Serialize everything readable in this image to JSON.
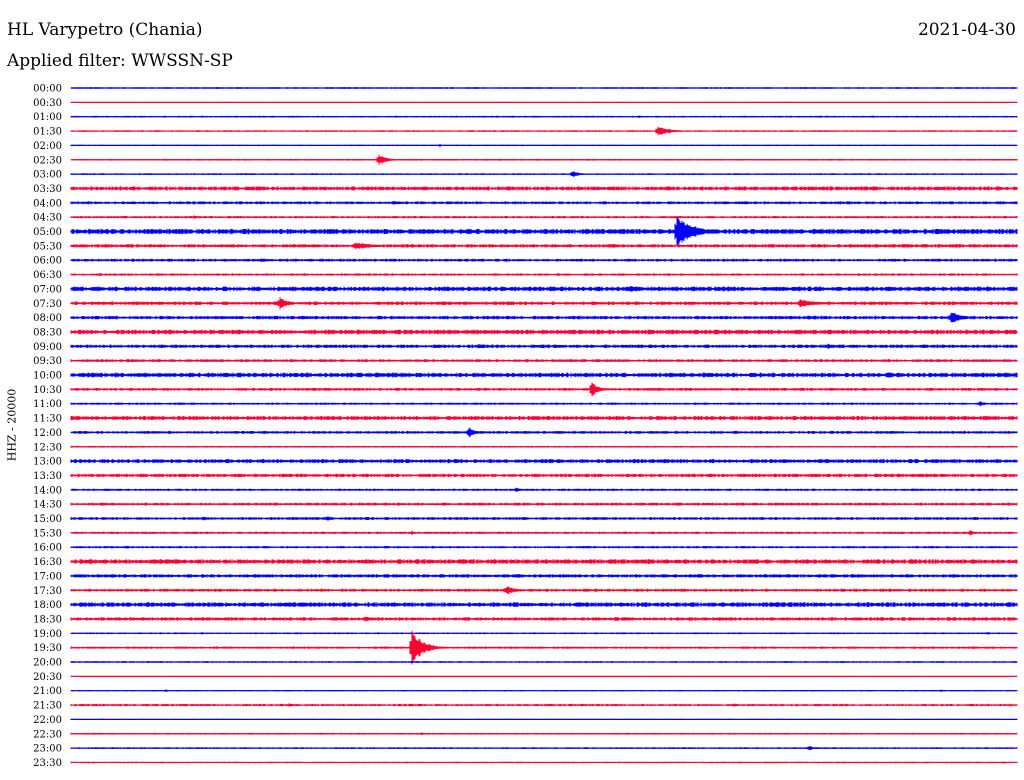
{
  "header": {
    "station": "HL Varypetro (Chania)",
    "date": "2021-04-30",
    "filter": "Applied filter: WWSSN-SP"
  },
  "colors": {
    "trace_even": "#0000ff",
    "trace_odd": "#ff0033",
    "background": "#ffffff",
    "text": "#000000"
  },
  "chart_data": {
    "type": "line",
    "title": "HL Varypetro (Chania)",
    "subtitle": "Applied filter: WWSSN-SP",
    "ylabel": "HHZ - 20000",
    "xlabel": "",
    "date": "2021-04-30",
    "grid": false,
    "rows": [
      {
        "label": "00:00",
        "noise": 0.6,
        "events": []
      },
      {
        "label": "00:30",
        "noise": 0.3,
        "events": []
      },
      {
        "label": "01:00",
        "noise": 0.6,
        "events": [
          {
            "at": 0.6,
            "amp": 2,
            "dur": 0.008
          }
        ]
      },
      {
        "label": "01:30",
        "noise": 0.6,
        "events": [
          {
            "at": 0.62,
            "amp": 5,
            "dur": 0.04
          }
        ]
      },
      {
        "label": "02:00",
        "noise": 0.5,
        "events": [
          {
            "at": 0.39,
            "amp": 2,
            "dur": 0.006
          }
        ]
      },
      {
        "label": "02:30",
        "noise": 0.6,
        "events": [
          {
            "at": 0.325,
            "amp": 6,
            "dur": 0.025
          }
        ]
      },
      {
        "label": "03:00",
        "noise": 0.6,
        "events": [
          {
            "at": 0.53,
            "amp": 4,
            "dur": 0.02
          }
        ]
      },
      {
        "label": "03:30",
        "noise": 1.4,
        "events": []
      },
      {
        "label": "04:00",
        "noise": 1.0,
        "events": [
          {
            "at": 0.2,
            "amp": 2,
            "dur": 0.02
          },
          {
            "at": 0.34,
            "amp": 2.5,
            "dur": 0.04
          }
        ]
      },
      {
        "label": "04:30",
        "noise": 0.8,
        "events": [
          {
            "at": 0.13,
            "amp": 2,
            "dur": 0.015
          },
          {
            "at": 0.54,
            "amp": 1.5,
            "dur": 0.01
          }
        ]
      },
      {
        "label": "05:00",
        "noise": 1.8,
        "events": [
          {
            "at": 0.08,
            "amp": 3,
            "dur": 0.01
          },
          {
            "at": 0.64,
            "amp": 17,
            "dur": 0.05
          }
        ]
      },
      {
        "label": "05:30",
        "noise": 1.2,
        "events": [
          {
            "at": 0.3,
            "amp": 4,
            "dur": 0.06
          }
        ]
      },
      {
        "label": "06:00",
        "noise": 1.0,
        "events": [
          {
            "at": 0.2,
            "amp": 3,
            "dur": 0.015
          }
        ]
      },
      {
        "label": "06:30",
        "noise": 0.8,
        "events": [
          {
            "at": 0.03,
            "amp": 2,
            "dur": 0.01
          }
        ]
      },
      {
        "label": "07:00",
        "noise": 1.6,
        "events": [
          {
            "at": 0.59,
            "amp": 4,
            "dur": 0.03
          }
        ]
      },
      {
        "label": "07:30",
        "noise": 1.2,
        "events": [
          {
            "at": 0.22,
            "amp": 7,
            "dur": 0.025
          },
          {
            "at": 0.77,
            "amp": 4,
            "dur": 0.06
          }
        ]
      },
      {
        "label": "08:00",
        "noise": 1.2,
        "events": [
          {
            "at": 0.93,
            "amp": 6,
            "dur": 0.04
          }
        ]
      },
      {
        "label": "08:30",
        "noise": 1.6,
        "events": []
      },
      {
        "label": "09:00",
        "noise": 1.2,
        "events": [
          {
            "at": 0.43,
            "amp": 3,
            "dur": 0.02
          },
          {
            "at": 0.8,
            "amp": 3,
            "dur": 0.025
          }
        ]
      },
      {
        "label": "09:30",
        "noise": 1.0,
        "events": [
          {
            "at": 0.06,
            "amp": 2,
            "dur": 0.01
          }
        ]
      },
      {
        "label": "10:00",
        "noise": 1.6,
        "events": [
          {
            "at": 0.34,
            "amp": 3,
            "dur": 0.015
          }
        ]
      },
      {
        "label": "10:30",
        "noise": 1.0,
        "events": [
          {
            "at": 0.55,
            "amp": 9,
            "dur": 0.02
          },
          {
            "at": 0.62,
            "amp": 2,
            "dur": 0.03
          }
        ]
      },
      {
        "label": "11:00",
        "noise": 0.8,
        "events": [
          {
            "at": 0.96,
            "amp": 3,
            "dur": 0.02
          }
        ]
      },
      {
        "label": "11:30",
        "noise": 1.4,
        "events": []
      },
      {
        "label": "12:00",
        "noise": 1.0,
        "events": [
          {
            "at": 0.42,
            "amp": 6,
            "dur": 0.025
          },
          {
            "at": 0.65,
            "amp": 2,
            "dur": 0.01
          }
        ]
      },
      {
        "label": "12:30",
        "noise": 0.6,
        "events": [
          {
            "at": 0.97,
            "amp": 2,
            "dur": 0.005
          }
        ]
      },
      {
        "label": "13:00",
        "noise": 1.4,
        "events": []
      },
      {
        "label": "13:30",
        "noise": 1.2,
        "events": []
      },
      {
        "label": "14:00",
        "noise": 0.8,
        "events": [
          {
            "at": 0.47,
            "amp": 3,
            "dur": 0.015
          }
        ]
      },
      {
        "label": "14:30",
        "noise": 1.0,
        "events": []
      },
      {
        "label": "15:00",
        "noise": 1.0,
        "events": [
          {
            "at": 0.14,
            "amp": 3,
            "dur": 0.008
          },
          {
            "at": 0.27,
            "amp": 3,
            "dur": 0.02
          }
        ]
      },
      {
        "label": "15:30",
        "noise": 0.8,
        "events": [
          {
            "at": 0.36,
            "amp": 3,
            "dur": 0.01
          },
          {
            "at": 0.95,
            "amp": 3,
            "dur": 0.02
          }
        ]
      },
      {
        "label": "16:00",
        "noise": 0.8,
        "events": []
      },
      {
        "label": "16:30",
        "noise": 1.6,
        "events": [
          {
            "at": 0.02,
            "amp": 3,
            "dur": 0.03
          },
          {
            "at": 0.11,
            "amp": 3,
            "dur": 0.02
          },
          {
            "at": 0.25,
            "amp": 3,
            "dur": 0.02
          },
          {
            "at": 0.74,
            "amp": 2,
            "dur": 0.015
          }
        ]
      },
      {
        "label": "17:00",
        "noise": 1.2,
        "events": [
          {
            "at": 0.52,
            "amp": 2,
            "dur": 0.02
          }
        ]
      },
      {
        "label": "17:30",
        "noise": 1.0,
        "events": [
          {
            "at": 0.46,
            "amp": 5,
            "dur": 0.03
          }
        ]
      },
      {
        "label": "18:00",
        "noise": 1.6,
        "events": [
          {
            "at": 0.14,
            "amp": 2.5,
            "dur": 0.02
          },
          {
            "at": 0.32,
            "amp": 2.5,
            "dur": 0.01
          }
        ]
      },
      {
        "label": "18:30",
        "noise": 1.2,
        "events": [
          {
            "at": 0.31,
            "amp": 3,
            "dur": 0.04
          }
        ]
      },
      {
        "label": "19:00",
        "noise": 0.6,
        "events": [
          {
            "at": 0.97,
            "amp": 2,
            "dur": 0.005
          }
        ]
      },
      {
        "label": "19:30",
        "noise": 0.8,
        "events": [
          {
            "at": 0.36,
            "amp": 18,
            "dur": 0.035
          }
        ]
      },
      {
        "label": "20:00",
        "noise": 0.6,
        "events": []
      },
      {
        "label": "20:30",
        "noise": 0.3,
        "events": []
      },
      {
        "label": "21:00",
        "noise": 0.5,
        "events": [
          {
            "at": 0.1,
            "amp": 2,
            "dur": 0.008
          },
          {
            "at": 0.92,
            "amp": 2,
            "dur": 0.005
          }
        ]
      },
      {
        "label": "21:30",
        "noise": 0.8,
        "events": [
          {
            "at": 0.23,
            "amp": 2,
            "dur": 0.02
          },
          {
            "at": 0.7,
            "amp": 2,
            "dur": 0.02
          }
        ]
      },
      {
        "label": "22:00",
        "noise": 0.4,
        "events": []
      },
      {
        "label": "22:30",
        "noise": 0.6,
        "events": [
          {
            "at": 0.37,
            "amp": 2,
            "dur": 0.015
          }
        ]
      },
      {
        "label": "23:00",
        "noise": 0.6,
        "events": [
          {
            "at": 0.78,
            "amp": 3,
            "dur": 0.015
          }
        ]
      },
      {
        "label": "23:30",
        "noise": 0.5,
        "events": []
      }
    ]
  }
}
